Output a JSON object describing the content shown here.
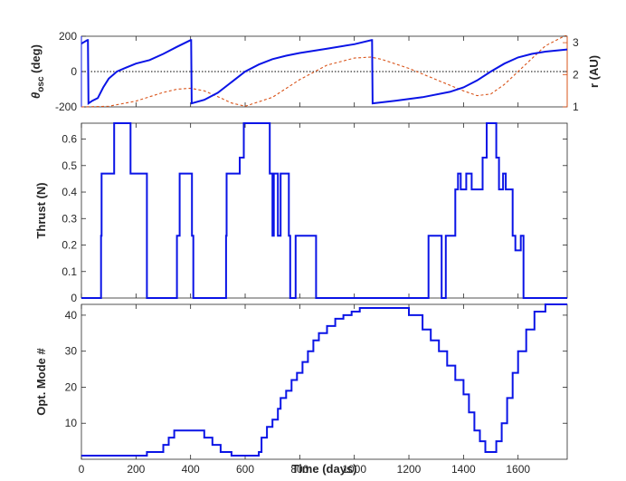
{
  "chart_data": [
    {
      "type": "line",
      "ylabel_main": "θ",
      "ylabel_sub": "osc",
      "ylabel_unit": " (deg)",
      "ylabel_right": "r (AU)",
      "xlim": [
        0,
        1780
      ],
      "ylim": [
        -200,
        200
      ],
      "ylim_right": [
        1,
        3.2
      ],
      "yticks": [
        -200,
        0,
        200
      ],
      "yticks_right": [
        1,
        2,
        3
      ],
      "grid": false,
      "colors": {
        "theta": "#0a14e6",
        "r": "#d95319",
        "zero": "#333333"
      },
      "series": [
        {
          "axis": "left",
          "x": [
            0,
            22,
            24,
            26,
            40,
            60,
            80,
            100,
            130,
            160,
            200,
            250,
            300,
            350,
            400,
            402,
            404,
            450,
            500,
            550,
            600,
            650,
            700,
            750,
            800,
            900,
            1000,
            1063,
            1065,
            1067,
            1150,
            1250,
            1350,
            1400,
            1450,
            1500,
            1550,
            1600,
            1650,
            1700,
            1780
          ],
          "y": [
            158,
            178,
            178,
            -180,
            -165,
            -150,
            -90,
            -40,
            0,
            20,
            45,
            65,
            100,
            140,
            178,
            178,
            -180,
            -160,
            -120,
            -60,
            0,
            40,
            70,
            90,
            105,
            130,
            155,
            178,
            178,
            -180,
            -165,
            -145,
            -115,
            -90,
            -50,
            0,
            45,
            80,
            100,
            113,
            125
          ]
        },
        {
          "axis": "right",
          "x": [
            0,
            100,
            200,
            300,
            350,
            400,
            450,
            500,
            550,
            600,
            700,
            800,
            900,
            1000,
            1060,
            1100,
            1200,
            1300,
            1400,
            1450,
            1500,
            1550,
            1600,
            1650,
            1700,
            1780
          ],
          "y": [
            1.0,
            1.02,
            1.18,
            1.45,
            1.55,
            1.58,
            1.5,
            1.32,
            1.12,
            1.02,
            1.3,
            1.85,
            2.3,
            2.52,
            2.55,
            2.48,
            2.2,
            1.85,
            1.5,
            1.35,
            1.4,
            1.7,
            2.1,
            2.5,
            2.9,
            3.25
          ]
        }
      ]
    },
    {
      "type": "line",
      "ylabel": "Thrust (N)",
      "xlim": [
        0,
        1780
      ],
      "ylim": [
        0,
        0.66
      ],
      "yticks": [
        0,
        0.1,
        0.2,
        0.3,
        0.4,
        0.5,
        0.6
      ],
      "grid": false,
      "step": true,
      "series": [
        {
          "x": [
            0,
            72,
            74,
            80,
            120,
            180,
            240,
            350,
            360,
            370,
            405,
            410,
            530,
            532,
            540,
            580,
            595,
            690,
            700,
            705,
            720,
            730,
            760,
            765,
            785,
            790,
            860,
            1272,
            1320,
            1335,
            1340,
            1370,
            1380,
            1390,
            1405,
            1410,
            1430,
            1445,
            1470,
            1485,
            1520,
            1530,
            1545,
            1555,
            1580,
            1590,
            1610,
            1620,
            1780
          ],
          "y": [
            0,
            0.235,
            0.47,
            0.47,
            0.66,
            0.47,
            0,
            0.235,
            0.47,
            0.47,
            0.235,
            0,
            0.235,
            0.47,
            0.47,
            0.53,
            0.66,
            0.47,
            0.235,
            0.47,
            0.235,
            0.47,
            0.235,
            0,
            0.235,
            0.235,
            0,
            0.235,
            0,
            0.235,
            0.235,
            0.41,
            0.47,
            0.41,
            0.41,
            0.47,
            0.41,
            0.41,
            0.53,
            0.66,
            0.53,
            0.41,
            0.47,
            0.41,
            0.235,
            0.18,
            0.235,
            0,
            0
          ]
        }
      ]
    },
    {
      "type": "line",
      "ylabel": "Opt. Mode #",
      "xlabel": "Time (days)",
      "xlim": [
        0,
        1780
      ],
      "ylim": [
        0,
        43
      ],
      "yticks": [
        10,
        20,
        30,
        40
      ],
      "xticks": [
        0,
        200,
        400,
        600,
        800,
        1000,
        1200,
        1400,
        1600
      ],
      "grid": false,
      "step": true,
      "series": [
        {
          "x": [
            0,
            230,
            240,
            280,
            300,
            320,
            340,
            420,
            450,
            480,
            510,
            550,
            600,
            650,
            660,
            680,
            700,
            720,
            730,
            750,
            770,
            790,
            810,
            830,
            850,
            870,
            900,
            930,
            960,
            990,
            1020,
            1100,
            1200,
            1250,
            1280,
            1310,
            1340,
            1370,
            1400,
            1420,
            1440,
            1460,
            1480,
            1500,
            1520,
            1540,
            1560,
            1580,
            1600,
            1630,
            1660,
            1700,
            1780
          ],
          "y": [
            1,
            1,
            2,
            2,
            4,
            6,
            8,
            8,
            6,
            4,
            2,
            1,
            1,
            2,
            6,
            9,
            11,
            14,
            17,
            19,
            22,
            24,
            27,
            30,
            33,
            35,
            37,
            39,
            40,
            41,
            42,
            42,
            40,
            36,
            33,
            30,
            26,
            22,
            18,
            13,
            8,
            5,
            2,
            2,
            5,
            10,
            17,
            24,
            30,
            36,
            41,
            43,
            43
          ]
        }
      ]
    }
  ]
}
